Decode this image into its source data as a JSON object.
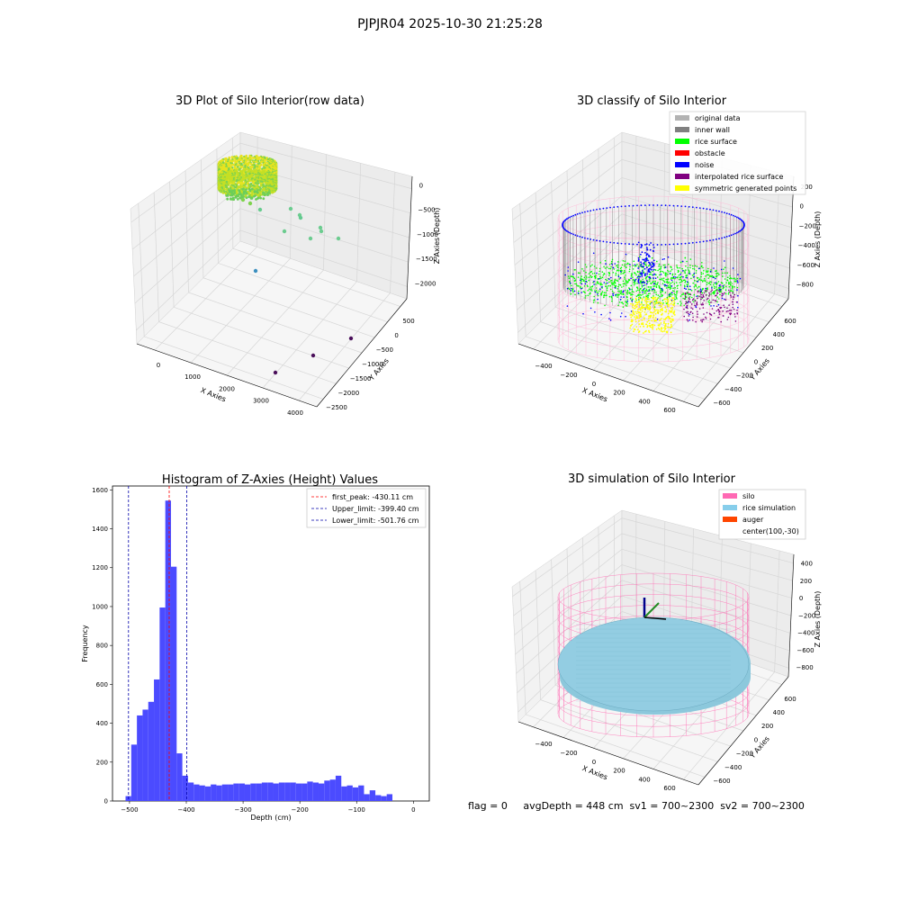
{
  "figure": {
    "title": "PJPJR04 2025-10-30 21:25:28"
  },
  "chart_data": [
    {
      "type": "scatter",
      "title": "3D Plot of Silo Interior(row data)",
      "xlabel": "X Axies",
      "ylabel": "Y Axies",
      "zlabel": "Z Axies (Depth)",
      "x_ticks": [
        "0",
        "1000",
        "2000",
        "3000",
        "4000"
      ],
      "y_ticks": [
        "500",
        "0",
        "−500",
        "−1000",
        "−1500",
        "−2000",
        "−2500"
      ],
      "z_ticks": [
        "0",
        "−500",
        "−1000",
        "−1500",
        "−2000"
      ],
      "grid": true
    },
    {
      "type": "scatter",
      "title": "3D classify of Silo Interior",
      "xlabel": "X Axies",
      "ylabel": "Y Axies",
      "zlabel": "Z Axies (Depth)",
      "x_ticks": [
        "−400",
        "−200",
        "0",
        "200",
        "400",
        "600"
      ],
      "y_ticks": [
        "600",
        "400",
        "200",
        "0",
        "−200",
        "−400",
        "−600"
      ],
      "z_ticks": [
        "200",
        "0",
        "−200",
        "−400",
        "−600",
        "−800"
      ],
      "legend": {
        "position": "top-right",
        "entries": [
          {
            "label": "original data",
            "color": "#b3b3b3"
          },
          {
            "label": "inner wall",
            "color": "#808080"
          },
          {
            "label": "rice surface",
            "color": "#00ff00"
          },
          {
            "label": "obstacle",
            "color": "#ff0000"
          },
          {
            "label": "noise",
            "color": "#0000ff"
          },
          {
            "label": "interpolated rice surface",
            "color": "#800080"
          },
          {
            "label": "symmetric generated points",
            "color": "#ffff00"
          }
        ]
      },
      "grid": true
    },
    {
      "type": "bar",
      "title": "Histogram of Z-Axies (Height) Values",
      "xlabel": "Depth (cm)",
      "ylabel": "Frequency",
      "xlim": [
        -530,
        28
      ],
      "ylim": [
        0,
        1620
      ],
      "x_ticks": [
        -500,
        -400,
        -300,
        -200,
        -100,
        0
      ],
      "x_tick_labels": [
        "−500",
        "−400",
        "−300",
        "−200",
        "−100",
        "0"
      ],
      "y_ticks": [
        0,
        200,
        400,
        600,
        800,
        1000,
        1200,
        1400,
        1600
      ],
      "y_tick_labels": [
        "0",
        "200",
        "400",
        "600",
        "800",
        "1000",
        "1200",
        "1400",
        "1600"
      ],
      "bin_start": -507,
      "bin_width": 10,
      "bar_color": "#4b4bff",
      "values": [
        25,
        290,
        440,
        470,
        510,
        625,
        995,
        1545,
        1205,
        245,
        130,
        95,
        85,
        80,
        75,
        85,
        80,
        85,
        85,
        90,
        90,
        85,
        90,
        90,
        95,
        95,
        90,
        95,
        95,
        95,
        90,
        90,
        100,
        95,
        90,
        105,
        110,
        130,
        75,
        80,
        70,
        80,
        35,
        55,
        30,
        25,
        35
      ],
      "lines": [
        {
          "label": "first_peak: -430.11 cm",
          "value": -430.11,
          "color": "#ff0000"
        },
        {
          "label": "Upper_limit: -399.40 cm",
          "value": -399.4,
          "color": "#0000aa"
        },
        {
          "label": "Lower_limit: -501.76 cm",
          "value": -501.76,
          "color": "#0000aa"
        }
      ],
      "legend": {
        "position": "top-right"
      }
    },
    {
      "type": "scatter",
      "title": "3D simulation of Silo Interior",
      "xlabel": "X Axies",
      "ylabel": "Y Axies",
      "zlabel": "Z Axies (Depth)",
      "x_ticks": [
        "−400",
        "−200",
        "0",
        "200",
        "400",
        "600"
      ],
      "y_ticks": [
        "600",
        "400",
        "200",
        "0",
        "−200",
        "−400",
        "−600"
      ],
      "z_ticks": [
        "400",
        "200",
        "0",
        "−200",
        "−400",
        "−600",
        "−800"
      ],
      "legend": {
        "position": "top-right",
        "entries": [
          {
            "label": "silo",
            "color": "#ff69b4"
          },
          {
            "label": "rice simulation",
            "color": "#87ceeb"
          },
          {
            "label": "auger",
            "color": "#ff4500"
          },
          {
            "label": "center(100,-30)",
            "color": ""
          }
        ]
      },
      "grid": true
    }
  ],
  "footer": {
    "text": "flag = 0     avgDepth = 448 cm  sv1 = 700~2300  sv2 = 700~2300"
  }
}
